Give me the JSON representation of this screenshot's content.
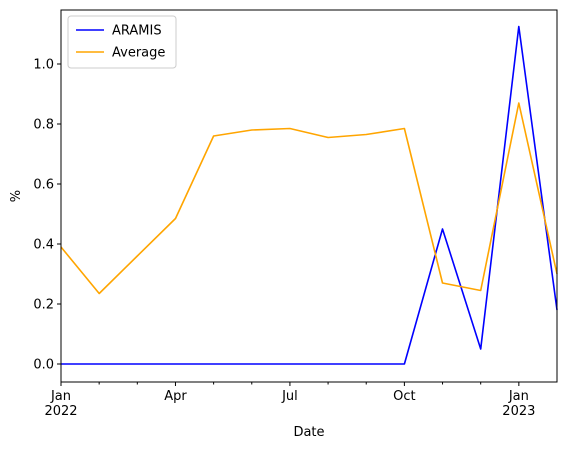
{
  "chart_data": {
    "type": "line",
    "xlabel": "Date",
    "ylabel": "%",
    "x": [
      "2022-01",
      "2022-02",
      "2022-03",
      "2022-04",
      "2022-05",
      "2022-06",
      "2022-07",
      "2022-08",
      "2022-09",
      "2022-10",
      "2022-11",
      "2022-12",
      "2023-01",
      "2023-02"
    ],
    "x_ticks": [
      {
        "label": "Jan",
        "sublabel": "2022",
        "x": "2022-01"
      },
      {
        "label": "Apr",
        "sublabel": "",
        "x": "2022-04"
      },
      {
        "label": "Jul",
        "sublabel": "",
        "x": "2022-07"
      },
      {
        "label": "Oct",
        "sublabel": "",
        "x": "2022-10"
      },
      {
        "label": "Jan",
        "sublabel": "2023",
        "x": "2023-01"
      }
    ],
    "x_minor_ticks": [
      "2022-02",
      "2022-03",
      "2022-05",
      "2022-06",
      "2022-08",
      "2022-09",
      "2022-11",
      "2022-12"
    ],
    "y_ticks": [
      "0.0",
      "0.2",
      "0.4",
      "0.6",
      "0.8",
      "1.0"
    ],
    "ylim": [
      -0.06,
      1.18
    ],
    "grid": false,
    "legend_position": "top-left",
    "series": [
      {
        "name": "ARAMIS",
        "color": "#0000ff",
        "values": [
          0.0,
          0.0,
          0.0,
          0.0,
          0.0,
          0.0,
          0.0,
          0.0,
          0.0,
          0.0,
          0.45,
          0.05,
          1.125,
          0.18
        ]
      },
      {
        "name": "Average",
        "color": "#ffa500",
        "values": [
          0.39,
          0.235,
          0.36,
          0.485,
          0.76,
          0.78,
          0.785,
          0.755,
          0.765,
          0.785,
          0.27,
          0.245,
          0.87,
          0.3
        ]
      }
    ]
  }
}
